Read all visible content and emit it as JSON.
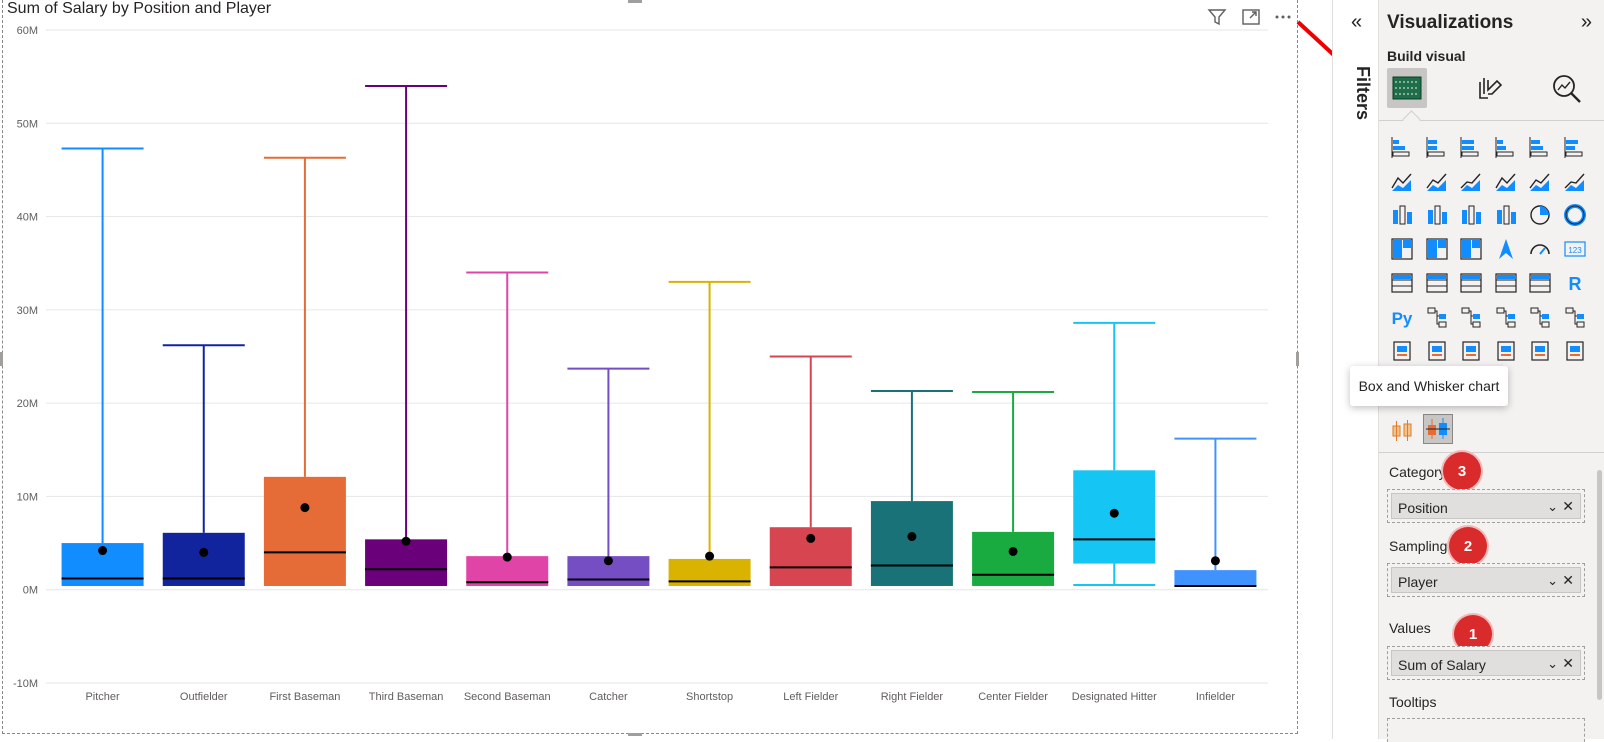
{
  "chart_data": {
    "type": "boxplot",
    "title": "Sum of Salary by Position and Player",
    "ylim": [
      -10,
      60
    ],
    "ytick_labels": [
      "60M",
      "50M",
      "40M",
      "30M",
      "20M",
      "10M",
      "0M",
      "-10M"
    ],
    "ytick_values": [
      60,
      50,
      40,
      30,
      20,
      10,
      0,
      -10
    ],
    "unit": "M",
    "grid": true,
    "categories": [
      "Pitcher",
      "Outfielder",
      "First Baseman",
      "Third Baseman",
      "Second Baseman",
      "Catcher",
      "Shortstop",
      "Left Fielder",
      "Right Fielder",
      "Center Fielder",
      "Designated Hitter",
      "Infielder"
    ],
    "boxes": [
      {
        "category": "Pitcher",
        "color": "#118dff",
        "whisker_low": 0.4,
        "q1": 0.4,
        "median": 1.2,
        "mean": 4.2,
        "q3": 5.0,
        "whisker_high": 47.3
      },
      {
        "category": "Outfielder",
        "color": "#12239e",
        "whisker_low": 0.4,
        "q1": 0.4,
        "median": 1.2,
        "mean": 4.0,
        "q3": 6.1,
        "whisker_high": 26.2
      },
      {
        "category": "First Baseman",
        "color": "#e66c37",
        "whisker_low": 0.4,
        "q1": 0.4,
        "median": 4.0,
        "mean": 8.8,
        "q3": 12.1,
        "whisker_high": 46.3
      },
      {
        "category": "Third Baseman",
        "color": "#6b007b",
        "whisker_low": 0.4,
        "q1": 0.4,
        "median": 2.2,
        "mean": 5.2,
        "q3": 5.4,
        "whisker_high": 54.0
      },
      {
        "category": "Second Baseman",
        "color": "#e044a7",
        "whisker_low": 0.4,
        "q1": 0.4,
        "median": 0.8,
        "mean": 3.5,
        "q3": 3.6,
        "whisker_high": 34.0
      },
      {
        "category": "Catcher",
        "color": "#744ec2",
        "whisker_low": 0.4,
        "q1": 0.4,
        "median": 1.1,
        "mean": 3.1,
        "q3": 3.6,
        "whisker_high": 23.7
      },
      {
        "category": "Shortstop",
        "color": "#d9b300",
        "whisker_low": 0.4,
        "q1": 0.4,
        "median": 0.9,
        "mean": 3.6,
        "q3": 3.3,
        "whisker_high": 33.0
      },
      {
        "category": "Left Fielder",
        "color": "#d64550",
        "whisker_low": 0.4,
        "q1": 0.4,
        "median": 2.4,
        "mean": 5.5,
        "q3": 6.7,
        "whisker_high": 25.0
      },
      {
        "category": "Right Fielder",
        "color": "#197278",
        "whisker_low": 0.4,
        "q1": 0.4,
        "median": 2.6,
        "mean": 5.7,
        "q3": 9.5,
        "whisker_high": 21.3
      },
      {
        "category": "Center Fielder",
        "color": "#1aab40",
        "whisker_low": 0.4,
        "q1": 0.4,
        "median": 1.6,
        "mean": 4.1,
        "q3": 6.2,
        "whisker_high": 21.2
      },
      {
        "category": "Designated Hitter",
        "color": "#15c6f4",
        "whisker_low": 0.5,
        "q1": 2.8,
        "median": 5.4,
        "mean": 8.2,
        "q3": 12.8,
        "whisker_high": 28.6
      },
      {
        "category": "Infielder",
        "color": "#4092ff",
        "whisker_low": 0.4,
        "q1": 0.4,
        "median": 0.4,
        "mean": 3.1,
        "q3": 2.1,
        "whisker_high": 16.2
      }
    ]
  },
  "filters": {
    "label": "Filters",
    "collapse_glyph": "«"
  },
  "visualizations": {
    "title": "Visualizations",
    "expand_glyph": "»",
    "build_visual_label": "Build visual",
    "tooltip": "Box and Whisker chart"
  },
  "wells": {
    "category": {
      "label": "Category",
      "value": "Position",
      "badge": "3"
    },
    "sampling": {
      "label": "Sampling",
      "value": "Player",
      "badge": "2"
    },
    "values": {
      "label": "Values",
      "value": "Sum of Salary",
      "badge": "1"
    },
    "tooltips": {
      "label": "Tooltips"
    }
  },
  "colors": {
    "accent_blue": "#118dff",
    "annotation_red": "#d92b2b",
    "pane_bg": "#f3f2f1"
  }
}
